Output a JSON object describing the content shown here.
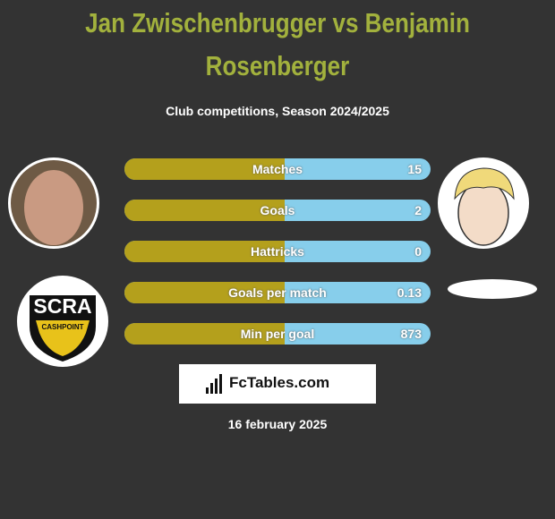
{
  "header": {
    "title": "Jan Zwischenbrugger vs Benjamin Rosenberger",
    "subtitle": "Club competitions, Season 2024/2025"
  },
  "stats": [
    {
      "label": "Matches",
      "value": 15
    },
    {
      "label": "Goals",
      "value": 2
    },
    {
      "label": "Hattricks",
      "value": 0
    },
    {
      "label": "Goals per match",
      "value": 0.13
    },
    {
      "label": "Min per goal",
      "value": 873
    }
  ],
  "club_logo": {
    "name": "SCRA",
    "sponsor": "CASHPOINT"
  },
  "brand": "FcTables.com",
  "date": "16 february 2025"
}
